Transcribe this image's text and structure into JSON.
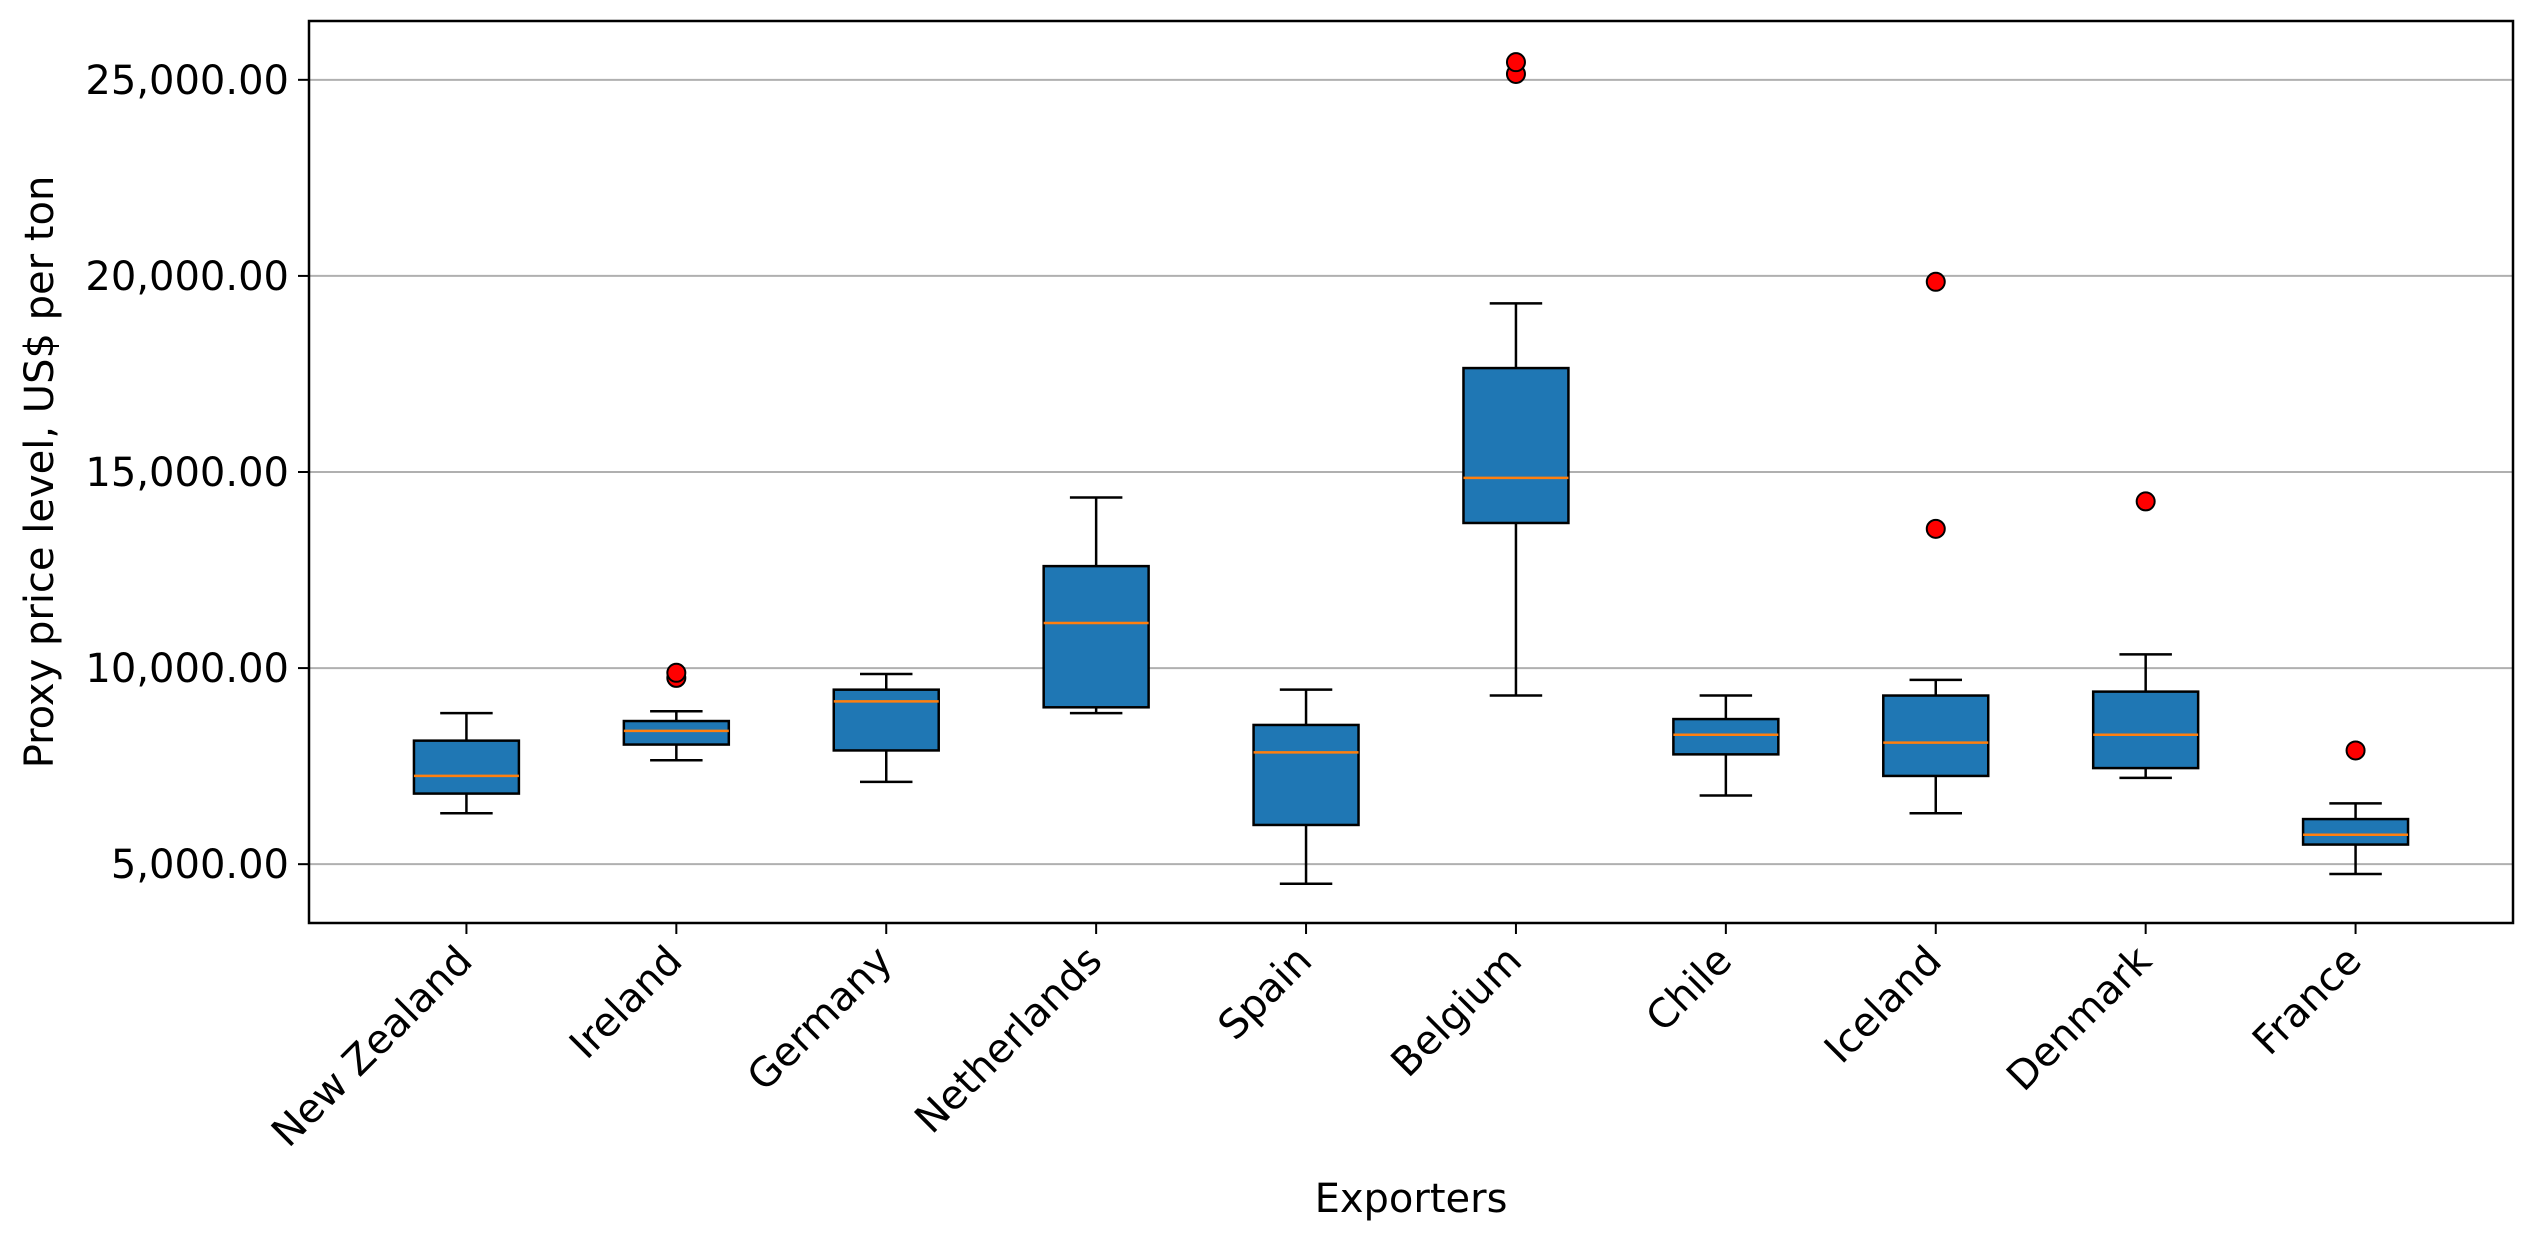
{
  "chart_data": {
    "type": "box",
    "title": "",
    "xlabel": "Exporters",
    "ylabel": "Proxy price level, US$ per ton",
    "ylim": [
      3500,
      26500
    ],
    "y_ticks": [
      5000,
      10000,
      15000,
      20000,
      25000
    ],
    "y_tick_labels": [
      "5,000.00",
      "10,000.00",
      "15,000.00",
      "20,000.00",
      "25,000.00"
    ],
    "grid": "horizontal",
    "colors": {
      "box_fill": "#1f77b4",
      "median": "#ff7f0e",
      "outlier_fill": "#ff0000",
      "grid": "#b0b0b0"
    },
    "categories": [
      "New Zealand",
      "Ireland",
      "Germany",
      "Netherlands",
      "Spain",
      "Belgium",
      "Chile",
      "Iceland",
      "Denmark",
      "France"
    ],
    "boxes": [
      {
        "category": "New Zealand",
        "whisker_low": 6300,
        "q1": 6800,
        "median": 7250,
        "q3": 8150,
        "whisker_high": 8850,
        "outliers": []
      },
      {
        "category": "Ireland",
        "whisker_low": 7650,
        "q1": 8050,
        "median": 8400,
        "q3": 8650,
        "whisker_high": 8900,
        "outliers": [
          9750,
          9880
        ]
      },
      {
        "category": "Germany",
        "whisker_low": 7100,
        "q1": 7900,
        "median": 9150,
        "q3": 9450,
        "whisker_high": 9850,
        "outliers": []
      },
      {
        "category": "Netherlands",
        "whisker_low": 8850,
        "q1": 9000,
        "median": 11150,
        "q3": 12600,
        "whisker_high": 14350,
        "outliers": []
      },
      {
        "category": "Spain",
        "whisker_low": 4500,
        "q1": 6000,
        "median": 7850,
        "q3": 8550,
        "whisker_high": 9450,
        "outliers": []
      },
      {
        "category": "Belgium",
        "whisker_low": 9300,
        "q1": 13700,
        "median": 14850,
        "q3": 17650,
        "whisker_high": 19300,
        "outliers": [
          25150,
          25450
        ]
      },
      {
        "category": "Chile",
        "whisker_low": 6750,
        "q1": 7800,
        "median": 8300,
        "q3": 8700,
        "whisker_high": 9300,
        "outliers": []
      },
      {
        "category": "Iceland",
        "whisker_low": 6300,
        "q1": 7250,
        "median": 8100,
        "q3": 9300,
        "whisker_high": 9700,
        "outliers": [
          13550,
          19850
        ]
      },
      {
        "category": "Denmark",
        "whisker_low": 7200,
        "q1": 7450,
        "median": 8300,
        "q3": 9400,
        "whisker_high": 10350,
        "outliers": [
          14250
        ]
      },
      {
        "category": "France",
        "whisker_low": 4750,
        "q1": 5500,
        "median": 5750,
        "q3": 6150,
        "whisker_high": 6550,
        "outliers": [
          7900
        ]
      }
    ]
  }
}
